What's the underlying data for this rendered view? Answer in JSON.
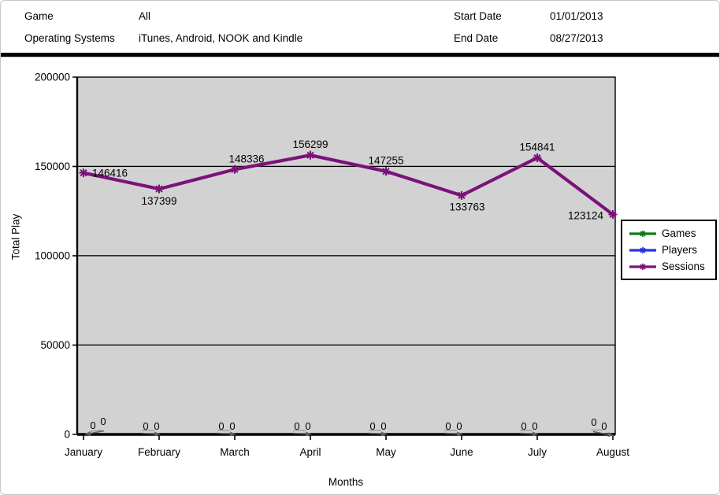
{
  "header": {
    "game_label": "Game",
    "game_value": "All",
    "os_label": "Operating Systems",
    "os_value": "iTunes, Android, NOOK and Kindle",
    "start_date_label": "Start Date",
    "start_date_value": "01/01/2013",
    "end_date_label": "End Date",
    "end_date_value": "08/27/2013"
  },
  "chart_data": {
    "type": "line",
    "title": "",
    "xlabel": "Months",
    "ylabel": "Total Play",
    "categories": [
      "January",
      "February",
      "March",
      "April",
      "May",
      "June",
      "July",
      "August"
    ],
    "yticks": [
      0,
      50000,
      100000,
      150000,
      200000
    ],
    "ylim": [
      0,
      200000
    ],
    "grid": "horizontal",
    "plot_background": "#d2d2d2",
    "legend_position": "right-middle",
    "series": [
      {
        "name": "Games",
        "color": "#0e7b0e",
        "values": [
          0,
          0,
          0,
          0,
          0,
          0,
          0,
          0
        ]
      },
      {
        "name": "Players",
        "color": "#2733e0",
        "values": [
          0,
          0,
          0,
          0,
          0,
          0,
          0,
          0
        ]
      },
      {
        "name": "Sessions",
        "color": "#7b127b",
        "values": [
          146416,
          137399,
          148336,
          156299,
          147255,
          133763,
          154841,
          123124
        ]
      }
    ],
    "zero_label_arrow_color": "#606060"
  }
}
